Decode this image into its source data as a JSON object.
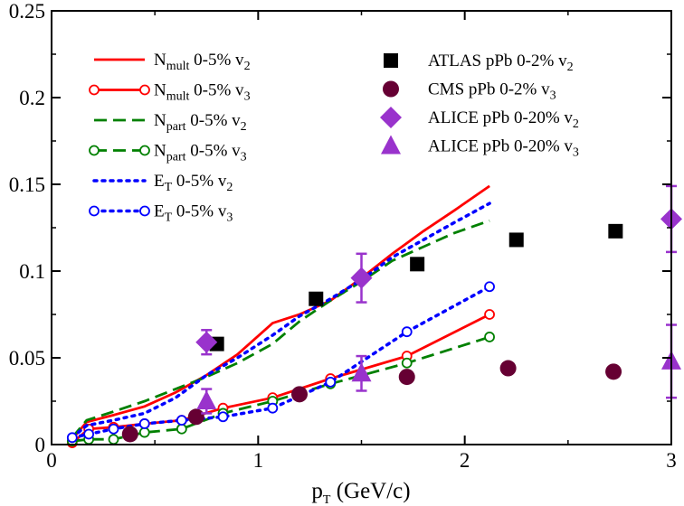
{
  "chart_data": {
    "type": "line",
    "title": "",
    "xlabel": {
      "main": "p",
      "sub": "T",
      "rest": " (GeV/c)"
    },
    "ylabel": "",
    "xlim": [
      0,
      3
    ],
    "ylim": [
      0,
      0.25
    ],
    "grid": false,
    "x_ticks": [
      {
        "value": 0,
        "label": "0"
      },
      {
        "value": 1,
        "label": "1"
      },
      {
        "value": 2,
        "label": "2"
      },
      {
        "value": 3,
        "label": "3"
      }
    ],
    "y_ticks": [
      {
        "value": 0,
        "label": "0"
      },
      {
        "value": 0.05,
        "label": "0.05"
      },
      {
        "value": 0.1,
        "label": "0.1"
      },
      {
        "value": 0.15,
        "label": "0.15"
      },
      {
        "value": 0.2,
        "label": "0.2"
      },
      {
        "value": 0.25,
        "label": "0.25"
      }
    ],
    "theory_series": [
      {
        "legend": {
          "pre": "N",
          "sub": "mult",
          "post": " 0-5% v",
          "sub2": "2"
        },
        "color": "#ff0000",
        "dash": "solid",
        "marker": "none",
        "x": [
          0.1,
          0.17,
          0.3,
          0.45,
          0.6,
          0.75,
          0.9,
          1.07,
          1.2,
          1.35,
          1.5,
          1.65,
          1.8,
          1.95,
          2.12
        ],
        "y": [
          0.003,
          0.013,
          0.017,
          0.022,
          0.03,
          0.04,
          0.052,
          0.07,
          0.075,
          0.083,
          0.096,
          0.11,
          0.123,
          0.135,
          0.149
        ]
      },
      {
        "legend": {
          "pre": "N",
          "sub": "mult",
          "post": " 0-5% v",
          "sub2": "3"
        },
        "color": "#ff0000",
        "dash": "solid",
        "marker": "circle",
        "x": [
          0.1,
          0.18,
          0.3,
          0.45,
          0.63,
          0.83,
          1.07,
          1.35,
          1.72,
          2.12
        ],
        "y": [
          0.001,
          0.009,
          0.01,
          0.012,
          0.014,
          0.021,
          0.027,
          0.038,
          0.051,
          0.075
        ]
      },
      {
        "legend": {
          "pre": "N",
          "sub": "part",
          "post": " 0-5% v",
          "sub2": "2"
        },
        "color": "#008000",
        "dash": "dash",
        "marker": "none",
        "x": [
          0.1,
          0.17,
          0.3,
          0.45,
          0.6,
          0.75,
          0.9,
          1.07,
          1.2,
          1.35,
          1.5,
          1.65,
          1.8,
          1.95,
          2.12
        ],
        "y": [
          0.004,
          0.014,
          0.019,
          0.025,
          0.032,
          0.039,
          0.047,
          0.058,
          0.071,
          0.083,
          0.094,
          0.106,
          0.114,
          0.122,
          0.129
        ]
      },
      {
        "legend": {
          "pre": "N",
          "sub": "part",
          "post": " 0-5% v",
          "sub2": "3"
        },
        "color": "#008000",
        "dash": "dash",
        "marker": "circle",
        "x": [
          0.1,
          0.18,
          0.3,
          0.45,
          0.63,
          0.83,
          1.07,
          1.35,
          1.72,
          2.12
        ],
        "y": [
          0.002,
          0.003,
          0.003,
          0.007,
          0.009,
          0.018,
          0.025,
          0.035,
          0.047,
          0.062
        ]
      },
      {
        "legend": {
          "pre": "E",
          "sub": "T",
          "post": " 0-5% v",
          "sub2": "2"
        },
        "color": "#0000ff",
        "dash": "dot",
        "marker": "none",
        "x": [
          0.1,
          0.17,
          0.3,
          0.45,
          0.6,
          0.75,
          0.9,
          1.07,
          1.2,
          1.35,
          1.5,
          1.65,
          1.8,
          1.95,
          2.12
        ],
        "y": [
          0.004,
          0.011,
          0.014,
          0.018,
          0.027,
          0.04,
          0.05,
          0.063,
          0.074,
          0.084,
          0.095,
          0.108,
          0.118,
          0.128,
          0.139
        ]
      },
      {
        "legend": {
          "pre": "E",
          "sub": "T",
          "post": " 0-5% v",
          "sub2": "3"
        },
        "color": "#0000ff",
        "dash": "dot",
        "marker": "circle",
        "x": [
          0.1,
          0.18,
          0.3,
          0.45,
          0.63,
          0.83,
          1.07,
          1.35,
          1.72,
          2.12
        ],
        "y": [
          0.004,
          0.006,
          0.009,
          0.012,
          0.014,
          0.016,
          0.021,
          0.036,
          0.065,
          0.091
        ]
      }
    ],
    "experimental_series": [
      {
        "legend": {
          "pre": "ATLAS pPb 0-2% v",
          "sub2": "2"
        },
        "color": "#000000",
        "marker": "square",
        "points": [
          {
            "x": 0.8,
            "y": 0.058,
            "err": 0
          },
          {
            "x": 1.28,
            "y": 0.084,
            "err": 0
          },
          {
            "x": 1.77,
            "y": 0.104,
            "err": 0
          },
          {
            "x": 2.25,
            "y": 0.118,
            "err": 0
          },
          {
            "x": 2.73,
            "y": 0.123,
            "err": 0
          }
        ]
      },
      {
        "legend": {
          "pre": "CMS pPb 0-2% v",
          "sub2": "3"
        },
        "color": "#660033",
        "marker": "circle-filled",
        "points": [
          {
            "x": 0.38,
            "y": 0.006,
            "err": 0
          },
          {
            "x": 0.7,
            "y": 0.016,
            "err": 0
          },
          {
            "x": 1.2,
            "y": 0.029,
            "err": 0
          },
          {
            "x": 1.72,
            "y": 0.039,
            "err": 0
          },
          {
            "x": 2.21,
            "y": 0.044,
            "err": 0
          },
          {
            "x": 2.72,
            "y": 0.042,
            "err": 0
          }
        ]
      },
      {
        "legend": {
          "pre": "ALICE pPb 0-20% v",
          "sub2": "2"
        },
        "color": "#9933cc",
        "marker": "diamond",
        "points": [
          {
            "x": 0.75,
            "y": 0.059,
            "err": 0.007
          },
          {
            "x": 1.5,
            "y": 0.096,
            "err": 0.014
          },
          {
            "x": 3.0,
            "y": 0.13,
            "err": 0.019
          }
        ]
      },
      {
        "legend": {
          "pre": "ALICE pPb 0-20% v",
          "sub2": "3"
        },
        "color": "#9933cc",
        "marker": "triangle",
        "points": [
          {
            "x": 0.75,
            "y": 0.025,
            "err": 0.007
          },
          {
            "x": 1.5,
            "y": 0.041,
            "err": 0.01
          },
          {
            "x": 3.0,
            "y": 0.048,
            "err": 0.021
          }
        ]
      }
    ]
  }
}
